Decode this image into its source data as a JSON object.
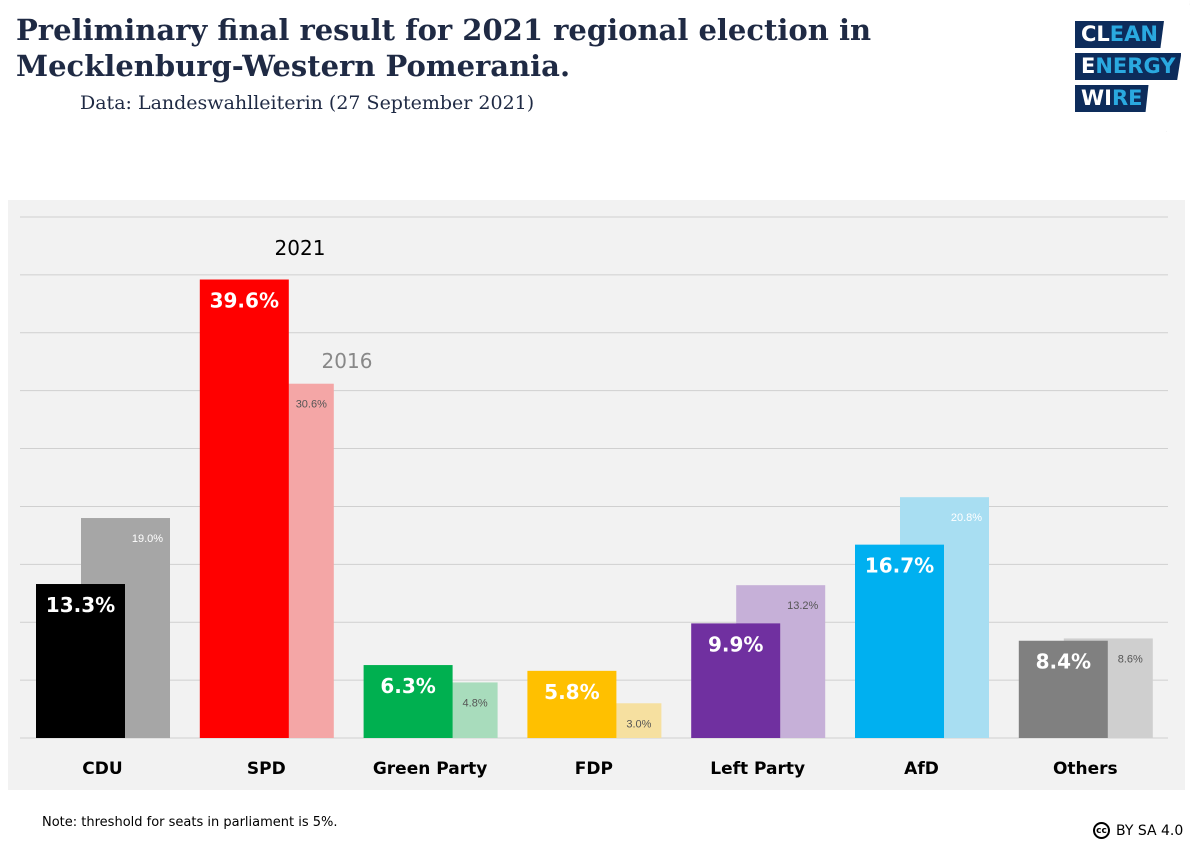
{
  "header": {
    "title_line1": "Preliminary final result for 2021 regional election in",
    "title_line2": "Mecklenburg-Western Pomerania.",
    "subtitle": "Data: Landeswahlleiterin (27 September 2021)"
  },
  "logo": {
    "line1_white": "CL",
    "line1_blue": "EAN",
    "line2_white": "E",
    "line2_blue": "NERGY",
    "line3_white": "WI",
    "line3_blue": "RE"
  },
  "chart_data": {
    "type": "bar",
    "title": "",
    "xlabel": "",
    "ylabel": "",
    "ylim": [
      0,
      45
    ],
    "grid": true,
    "categories": [
      "CDU",
      "SPD",
      "Green Party",
      "FDP",
      "Left Party",
      "AfD",
      "Others"
    ],
    "series": [
      {
        "name": "2021",
        "values": [
          13.3,
          39.6,
          6.3,
          5.8,
          9.9,
          16.7,
          8.4
        ],
        "labels": [
          "13.3%",
          "39.6%",
          "6.3%",
          "5.8%",
          "9.9%",
          "16.7%",
          "8.4%"
        ],
        "colors": [
          "#000000",
          "#ff0000",
          "#00b050",
          "#ffc000",
          "#7030a0",
          "#00b0f0",
          "#808080"
        ]
      },
      {
        "name": "2016",
        "values": [
          19.0,
          30.6,
          4.8,
          3.0,
          13.2,
          20.8,
          8.6
        ],
        "labels": [
          "19.0%",
          "30.6%",
          "4.8%",
          "3.0%",
          "13.2%",
          "20.8%",
          "8.6%"
        ],
        "colors": [
          "#a6a6a6",
          "#f4a6a6",
          "#a8dcbc",
          "#f6e0a0",
          "#c6b0d8",
          "#a8def2",
          "#cfcfcf"
        ]
      }
    ],
    "annotations": [
      "2021",
      "2016"
    ]
  },
  "footer": {
    "note": "Note: threshold for seats in parliament is 5%.",
    "cc_icon": "cc",
    "license": "BY SA 4.0"
  }
}
